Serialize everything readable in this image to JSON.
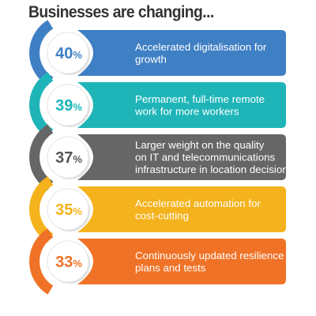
{
  "chart_data": {
    "type": "bar",
    "title": "Businesses are changing...",
    "unit": "%",
    "categories": [
      "Accelerated digitalisation for growth",
      "Permanent, full-time remote work for more workers",
      "Larger weight on the quality on IT and telecommunications infrastructure in location decisions",
      "Accelerated automation for cost-cutting",
      "Continuously updated resilience plans and tests"
    ],
    "label_lines": [
      [
        "Accelerated digitalisation for",
        "growth"
      ],
      [
        "Permanent, full-time remote",
        "work for more workers"
      ],
      [
        "Larger weight on the quality",
        "on IT and telecommunications",
        "infrastructure in location decisions"
      ],
      [
        "Accelerated automation for",
        "cost-cutting"
      ],
      [
        "Continuously updated resilience",
        "plans and tests"
      ]
    ],
    "values": [
      40,
      39,
      37,
      35,
      33
    ],
    "colors": [
      "#3f7fc4",
      "#1fb5b8",
      "#666666",
      "#f4b21c",
      "#f07226"
    ],
    "value_text_colors": [
      "#3f7fc4",
      "#1fb5b8",
      "#555555",
      "#f4b21c",
      "#f07226"
    ]
  }
}
